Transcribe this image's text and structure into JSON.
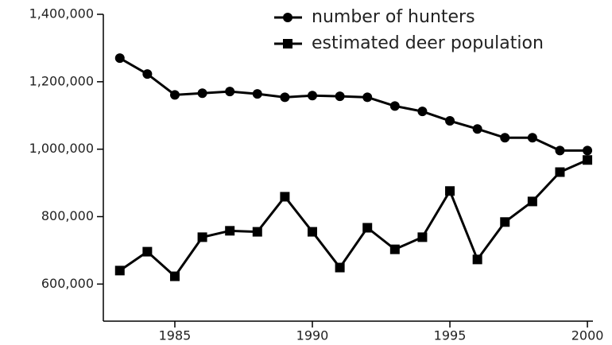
{
  "chart_data": {
    "type": "line",
    "x": [
      1983,
      1984,
      1985,
      1986,
      1987,
      1988,
      1989,
      1990,
      1991,
      1992,
      1993,
      1994,
      1995,
      1996,
      1997,
      1998,
      1999,
      2000
    ],
    "series": [
      {
        "name": "number of hunters",
        "color": "#000000",
        "marker": "circle",
        "values": [
          1270000,
          1223000,
          1161000,
          1166000,
          1171000,
          1164000,
          1154000,
          1159000,
          1157000,
          1154000,
          1128000,
          1112000,
          1084000,
          1060000,
          1034000,
          1034000,
          996000,
          996000
        ]
      },
      {
        "name": "estimated deer population",
        "color": "#000000",
        "marker": "square",
        "values": [
          640000,
          696000,
          623000,
          739000,
          758000,
          755000,
          859000,
          755000,
          649000,
          767000,
          703000,
          739000,
          876000,
          673000,
          784000,
          845000,
          932000,
          968000
        ]
      }
    ],
    "xlim": [
      1982.4,
      2000.2
    ],
    "xticks": [
      1985,
      1990,
      1995,
      2000
    ],
    "ylim": [
      490000,
      1400000
    ],
    "yticks": [
      {
        "value": 600000,
        "label": "600,000"
      },
      {
        "value": 800000,
        "label": "800,000"
      },
      {
        "value": 1000000,
        "label": "1,000,000"
      },
      {
        "value": 1200000,
        "label": "1,200,000"
      },
      {
        "value": 1400000,
        "label": "1,400,000"
      }
    ],
    "grid": false,
    "legend": "top-right"
  }
}
